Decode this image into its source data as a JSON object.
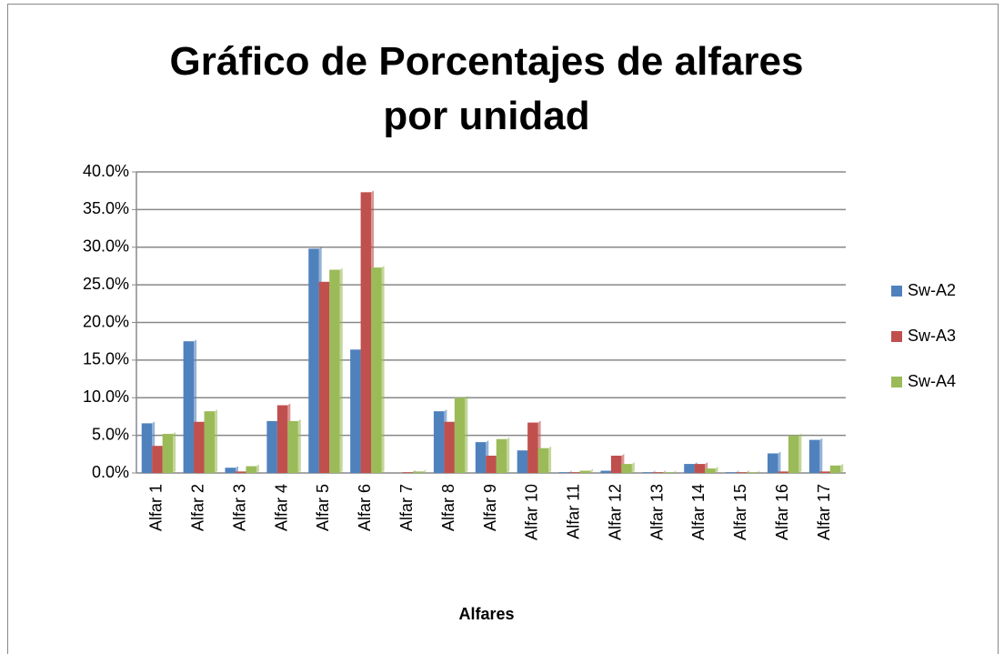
{
  "chart_data": {
    "type": "bar",
    "title": "Gráfico de Porcentajes de alfares por unidad",
    "x_label": "Alfares",
    "categories": [
      "Alfar 1",
      "Alfar 2",
      "Alfar 3",
      "Alfar 4",
      "Alfar 5",
      "Alfar 6",
      "Alfar 7",
      "Alfar 8",
      "Alfar 9",
      "Alfar 10",
      "Alfar 11",
      "Alfar 12",
      "Alfar 13",
      "Alfar 14",
      "Alfar 15",
      "Alfar 16",
      "Alfar 17"
    ],
    "series": [
      {
        "name": "Sw-A2",
        "color": "#4f81bd",
        "values": [
          6.6,
          17.5,
          0.7,
          6.9,
          29.8,
          16.4,
          0.0,
          8.2,
          4.1,
          3.0,
          0.1,
          0.3,
          0.1,
          1.2,
          0.1,
          2.6,
          4.4
        ]
      },
      {
        "name": "Sw-A3",
        "color": "#c0504d",
        "values": [
          3.6,
          6.8,
          0.2,
          9.0,
          25.4,
          37.3,
          0.1,
          6.8,
          2.3,
          6.7,
          0.1,
          2.3,
          0.1,
          1.2,
          0.1,
          0.2,
          0.2
        ]
      },
      {
        "name": "Sw-A4",
        "color": "#9bbb59",
        "values": [
          5.2,
          8.2,
          0.9,
          6.9,
          27.0,
          27.3,
          0.2,
          10.0,
          4.5,
          3.3,
          0.3,
          1.2,
          0.1,
          0.6,
          0.1,
          5.0,
          1.0
        ]
      }
    ],
    "ylim": [
      0,
      40
    ],
    "yticks": [
      {
        "value": 0,
        "label": "0.0%"
      },
      {
        "value": 5,
        "label": "5.0%"
      },
      {
        "value": 10,
        "label": "10.0%"
      },
      {
        "value": 15,
        "label": "15.0%"
      },
      {
        "value": 20,
        "label": "20.0%"
      },
      {
        "value": 25,
        "label": "25.0%"
      },
      {
        "value": 30,
        "label": "30.0%"
      },
      {
        "value": 35,
        "label": "35.0%"
      },
      {
        "value": 40,
        "label": "40.0%"
      }
    ],
    "grid": true,
    "legend": "right"
  }
}
